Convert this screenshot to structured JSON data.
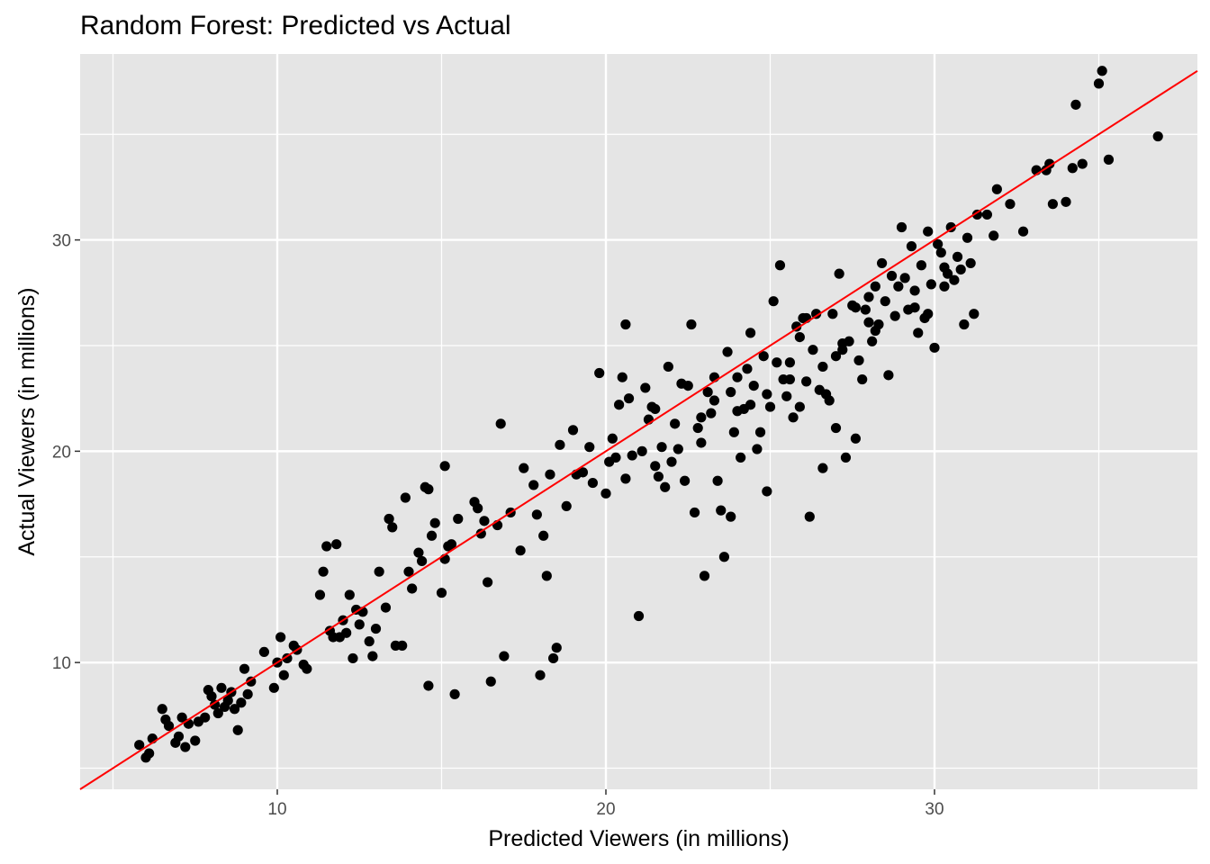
{
  "chart_data": {
    "type": "scatter",
    "title": "Random Forest: Predicted vs Actual",
    "xlabel": "Predicted Viewers (in millions)",
    "ylabel": "Actual Viewers (in millions)",
    "xlim": [
      4.0,
      38.0
    ],
    "ylim": [
      4.0,
      38.8
    ],
    "x_ticks": [
      10,
      20,
      30
    ],
    "y_ticks": [
      10,
      20,
      30
    ],
    "grid": true,
    "point_color": "#000000",
    "line_color": "#ff0000",
    "panel_color": "#e5e5e5",
    "grid_color": "#ffffff",
    "reference_line": {
      "slope": 1,
      "intercept": 0,
      "label": ""
    },
    "points": [
      [
        5.8,
        6.1
      ],
      [
        6.0,
        5.5
      ],
      [
        6.1,
        5.7
      ],
      [
        6.2,
        6.4
      ],
      [
        6.5,
        7.8
      ],
      [
        6.6,
        7.3
      ],
      [
        6.7,
        7.0
      ],
      [
        6.9,
        6.2
      ],
      [
        7.0,
        6.5
      ],
      [
        7.1,
        7.4
      ],
      [
        7.2,
        6.0
      ],
      [
        7.3,
        7.1
      ],
      [
        7.5,
        6.3
      ],
      [
        7.6,
        7.2
      ],
      [
        7.8,
        7.4
      ],
      [
        7.9,
        8.7
      ],
      [
        8.0,
        8.4
      ],
      [
        8.1,
        8.0
      ],
      [
        8.2,
        7.6
      ],
      [
        8.3,
        8.8
      ],
      [
        8.4,
        7.9
      ],
      [
        8.5,
        8.2
      ],
      [
        8.6,
        8.6
      ],
      [
        8.7,
        7.8
      ],
      [
        8.8,
        6.8
      ],
      [
        8.9,
        8.1
      ],
      [
        9.0,
        9.7
      ],
      [
        9.1,
        8.5
      ],
      [
        9.2,
        9.1
      ],
      [
        9.6,
        10.5
      ],
      [
        9.9,
        8.8
      ],
      [
        10.0,
        10.0
      ],
      [
        10.1,
        11.2
      ],
      [
        10.2,
        9.4
      ],
      [
        10.3,
        10.2
      ],
      [
        10.5,
        10.8
      ],
      [
        10.6,
        10.6
      ],
      [
        10.8,
        9.9
      ],
      [
        10.9,
        9.7
      ],
      [
        11.3,
        13.2
      ],
      [
        11.4,
        14.3
      ],
      [
        11.5,
        15.5
      ],
      [
        11.6,
        11.5
      ],
      [
        11.7,
        11.2
      ],
      [
        11.8,
        15.6
      ],
      [
        11.9,
        11.2
      ],
      [
        12.0,
        12.0
      ],
      [
        12.1,
        11.4
      ],
      [
        12.2,
        13.2
      ],
      [
        12.3,
        10.2
      ],
      [
        12.4,
        12.5
      ],
      [
        12.5,
        11.8
      ],
      [
        12.6,
        12.4
      ],
      [
        12.8,
        11.0
      ],
      [
        12.9,
        10.3
      ],
      [
        13.0,
        11.6
      ],
      [
        13.1,
        14.3
      ],
      [
        13.3,
        12.6
      ],
      [
        13.4,
        16.8
      ],
      [
        13.5,
        16.4
      ],
      [
        13.6,
        10.8
      ],
      [
        13.8,
        10.8
      ],
      [
        13.9,
        17.8
      ],
      [
        14.0,
        14.3
      ],
      [
        14.1,
        13.5
      ],
      [
        14.3,
        15.2
      ],
      [
        14.4,
        14.8
      ],
      [
        14.5,
        18.3
      ],
      [
        14.6,
        18.2
      ],
      [
        14.7,
        16.0
      ],
      [
        14.8,
        16.6
      ],
      [
        15.0,
        13.3
      ],
      [
        15.1,
        19.3
      ],
      [
        15.2,
        15.5
      ],
      [
        15.3,
        15.6
      ],
      [
        15.4,
        8.5
      ],
      [
        15.5,
        16.8
      ],
      [
        15.1,
        14.9
      ],
      [
        14.6,
        8.9
      ],
      [
        16.0,
        17.6
      ],
      [
        16.1,
        17.3
      ],
      [
        16.2,
        16.1
      ],
      [
        16.3,
        16.7
      ],
      [
        16.4,
        13.8
      ],
      [
        16.5,
        9.1
      ],
      [
        16.7,
        16.5
      ],
      [
        16.8,
        21.3
      ],
      [
        16.9,
        10.3
      ],
      [
        17.1,
        17.1
      ],
      [
        17.4,
        15.3
      ],
      [
        17.9,
        17.0
      ],
      [
        18.1,
        16.0
      ],
      [
        18.2,
        14.1
      ],
      [
        18.0,
        9.4
      ],
      [
        18.4,
        10.2
      ],
      [
        18.5,
        10.7
      ],
      [
        18.8,
        17.4
      ],
      [
        19.1,
        18.9
      ],
      [
        19.3,
        19.0
      ],
      [
        19.5,
        20.2
      ],
      [
        19.6,
        18.5
      ],
      [
        19.8,
        23.7
      ],
      [
        20.0,
        18.0
      ],
      [
        20.1,
        19.5
      ],
      [
        20.2,
        20.6
      ],
      [
        20.3,
        19.7
      ],
      [
        20.4,
        22.2
      ],
      [
        20.5,
        23.5
      ],
      [
        20.6,
        18.7
      ],
      [
        20.7,
        22.5
      ],
      [
        20.8,
        19.8
      ],
      [
        21.0,
        12.2
      ],
      [
        21.1,
        20.0
      ],
      [
        21.2,
        23.0
      ],
      [
        21.3,
        21.5
      ],
      [
        21.4,
        22.1
      ],
      [
        21.5,
        19.3
      ],
      [
        21.6,
        18.8
      ],
      [
        21.7,
        20.2
      ],
      [
        21.8,
        18.3
      ],
      [
        21.9,
        24.0
      ],
      [
        22.0,
        19.5
      ],
      [
        22.1,
        21.3
      ],
      [
        22.2,
        20.1
      ],
      [
        22.3,
        23.2
      ],
      [
        22.4,
        18.6
      ],
      [
        22.5,
        23.1
      ],
      [
        22.6,
        26.0
      ],
      [
        22.7,
        17.1
      ],
      [
        22.8,
        21.1
      ],
      [
        22.9,
        20.4
      ],
      [
        23.0,
        14.1
      ],
      [
        23.1,
        22.8
      ],
      [
        23.2,
        21.8
      ],
      [
        23.3,
        23.5
      ],
      [
        23.4,
        18.6
      ],
      [
        23.5,
        17.2
      ],
      [
        23.6,
        15.0
      ],
      [
        23.7,
        24.7
      ],
      [
        23.8,
        16.9
      ],
      [
        23.9,
        20.9
      ],
      [
        24.0,
        23.5
      ],
      [
        24.1,
        19.7
      ],
      [
        24.2,
        22.0
      ],
      [
        24.3,
        23.9
      ],
      [
        24.4,
        22.2
      ],
      [
        24.5,
        23.1
      ],
      [
        24.6,
        20.1
      ],
      [
        24.7,
        20.9
      ],
      [
        24.8,
        24.5
      ],
      [
        24.9,
        18.1
      ],
      [
        25.0,
        22.1
      ],
      [
        25.1,
        27.1
      ],
      [
        25.2,
        24.2
      ],
      [
        25.3,
        28.8
      ],
      [
        25.4,
        23.4
      ],
      [
        25.5,
        22.6
      ],
      [
        25.6,
        24.2
      ],
      [
        25.7,
        21.6
      ],
      [
        25.8,
        25.9
      ],
      [
        25.9,
        22.1
      ],
      [
        26.0,
        26.3
      ],
      [
        26.1,
        23.3
      ],
      [
        26.2,
        16.9
      ],
      [
        26.3,
        24.8
      ],
      [
        26.4,
        26.5
      ],
      [
        26.5,
        22.9
      ],
      [
        26.6,
        19.2
      ],
      [
        26.7,
        22.7
      ],
      [
        26.8,
        22.4
      ],
      [
        26.9,
        26.5
      ],
      [
        27.0,
        21.1
      ],
      [
        27.1,
        28.4
      ],
      [
        27.2,
        24.8
      ],
      [
        27.3,
        19.7
      ],
      [
        27.4,
        25.2
      ],
      [
        27.5,
        26.9
      ],
      [
        27.6,
        20.6
      ],
      [
        27.7,
        24.3
      ],
      [
        27.8,
        23.4
      ],
      [
        27.9,
        26.7
      ],
      [
        28.0,
        27.3
      ],
      [
        28.1,
        25.2
      ],
      [
        28.2,
        27.8
      ],
      [
        28.3,
        26.0
      ],
      [
        28.4,
        28.9
      ],
      [
        28.5,
        27.1
      ],
      [
        28.6,
        23.6
      ],
      [
        28.7,
        28.3
      ],
      [
        28.8,
        26.4
      ],
      [
        28.9,
        27.8
      ],
      [
        29.0,
        30.6
      ],
      [
        29.1,
        28.2
      ],
      [
        29.2,
        26.7
      ],
      [
        29.3,
        29.7
      ],
      [
        29.4,
        27.6
      ],
      [
        29.5,
        25.6
      ],
      [
        29.6,
        28.8
      ],
      [
        29.7,
        26.3
      ],
      [
        29.8,
        30.4
      ],
      [
        29.9,
        27.9
      ],
      [
        30.0,
        24.9
      ],
      [
        30.1,
        29.8
      ],
      [
        30.2,
        29.4
      ],
      [
        30.3,
        28.7
      ],
      [
        30.4,
        28.4
      ],
      [
        30.5,
        30.6
      ],
      [
        30.6,
        28.1
      ],
      [
        30.7,
        29.2
      ],
      [
        30.8,
        28.6
      ],
      [
        30.9,
        26.0
      ],
      [
        31.0,
        30.1
      ],
      [
        31.1,
        28.9
      ],
      [
        31.2,
        26.5
      ],
      [
        31.3,
        31.2
      ],
      [
        31.6,
        31.2
      ],
      [
        31.8,
        30.2
      ],
      [
        31.9,
        32.4
      ],
      [
        32.3,
        31.7
      ],
      [
        32.7,
        30.4
      ],
      [
        33.1,
        33.3
      ],
      [
        33.4,
        33.3
      ],
      [
        33.5,
        33.6
      ],
      [
        33.6,
        31.7
      ],
      [
        34.0,
        31.8
      ],
      [
        34.2,
        33.4
      ],
      [
        34.5,
        33.6
      ],
      [
        34.3,
        36.4
      ],
      [
        35.0,
        37.4
      ],
      [
        35.1,
        38.0
      ],
      [
        35.3,
        33.8
      ],
      [
        36.8,
        34.9
      ],
      [
        20.6,
        26.0
      ],
      [
        21.5,
        22.0
      ],
      [
        18.6,
        20.3
      ],
      [
        19.0,
        21.0
      ],
      [
        24.4,
        25.6
      ],
      [
        25.9,
        25.4
      ],
      [
        26.1,
        26.3
      ],
      [
        27.2,
        25.1
      ],
      [
        27.6,
        26.8
      ],
      [
        28.0,
        26.1
      ],
      [
        28.2,
        25.7
      ],
      [
        29.4,
        26.8
      ],
      [
        29.8,
        26.5
      ],
      [
        30.3,
        27.8
      ],
      [
        17.5,
        19.2
      ],
      [
        17.8,
        18.4
      ],
      [
        18.3,
        18.9
      ],
      [
        22.9,
        21.6
      ],
      [
        23.3,
        22.4
      ],
      [
        23.8,
        22.8
      ],
      [
        24.0,
        21.9
      ],
      [
        24.9,
        22.7
      ],
      [
        25.6,
        23.4
      ],
      [
        26.6,
        24.0
      ],
      [
        27.0,
        24.5
      ]
    ]
  }
}
